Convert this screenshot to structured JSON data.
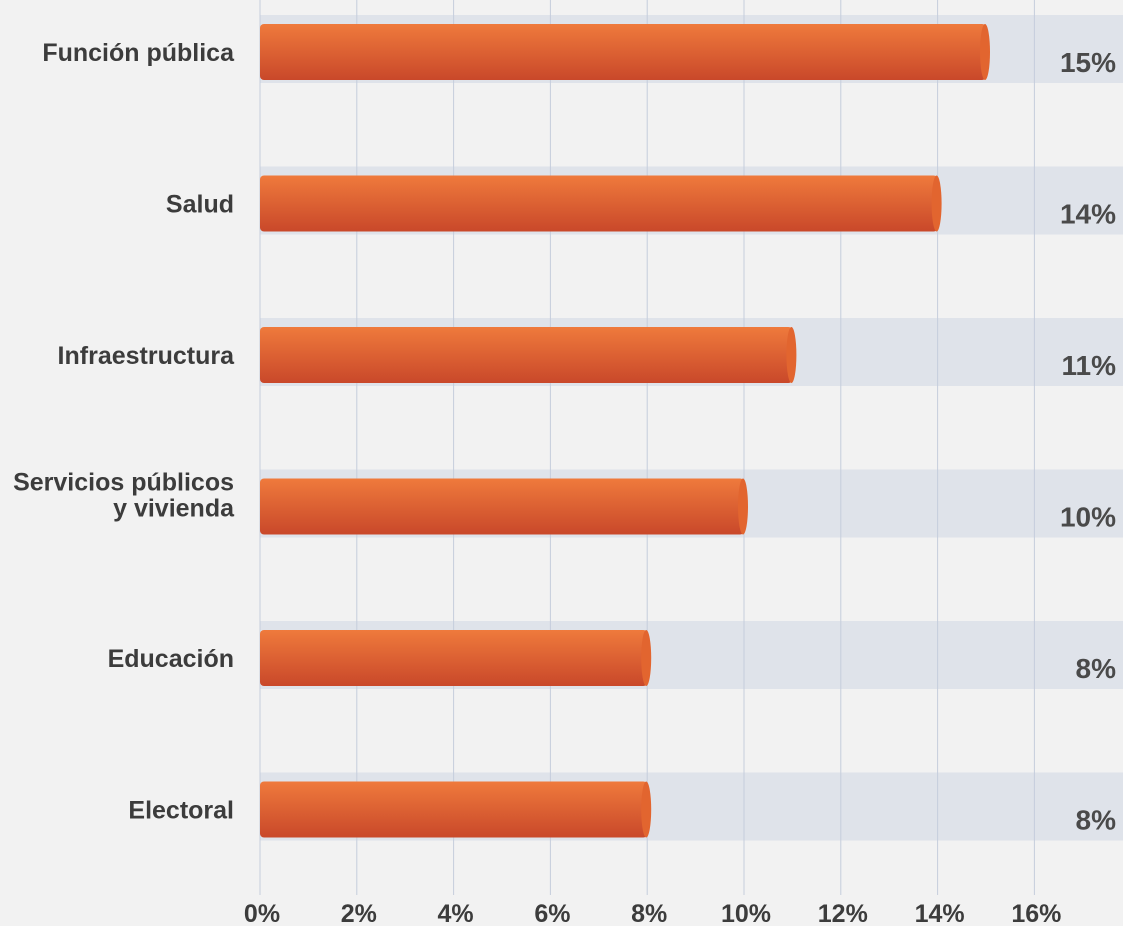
{
  "chart_data": {
    "type": "bar",
    "orientation": "horizontal",
    "categories": [
      "Función pública",
      "Salud",
      "Infraestructura",
      "Servicios públicos y vivienda",
      "Educación",
      "Electoral"
    ],
    "category_lines": [
      [
        "Función pública"
      ],
      [
        "Salud"
      ],
      [
        "Infraestructura"
      ],
      [
        "Servicios públicos",
        "y vivienda"
      ],
      [
        "Educación"
      ],
      [
        "Electoral"
      ]
    ],
    "values": [
      15,
      14,
      11,
      10,
      8,
      8
    ],
    "value_labels": [
      "15%",
      "14%",
      "11%",
      "10%",
      "8%",
      "8%"
    ],
    "xlim": [
      0,
      16
    ],
    "xticks": [
      0,
      2,
      4,
      6,
      8,
      10,
      12,
      14,
      16
    ],
    "xtick_labels": [
      "0%",
      "2%",
      "4%",
      "6%",
      "8%",
      "10%",
      "12%",
      "14%",
      "16%"
    ],
    "title": "",
    "xlabel": "",
    "ylabel": "",
    "grid": "vertical",
    "colors": {
      "background": "#f2f2f2",
      "track": "#dfe3ea",
      "grid": "#c5cddc",
      "bar_top": "#ef7a3c",
      "bar_bottom": "#c9482a",
      "bar_cap": "#e2652f",
      "text": "#3c3c3c",
      "value_text": "#4a4a4a"
    }
  }
}
